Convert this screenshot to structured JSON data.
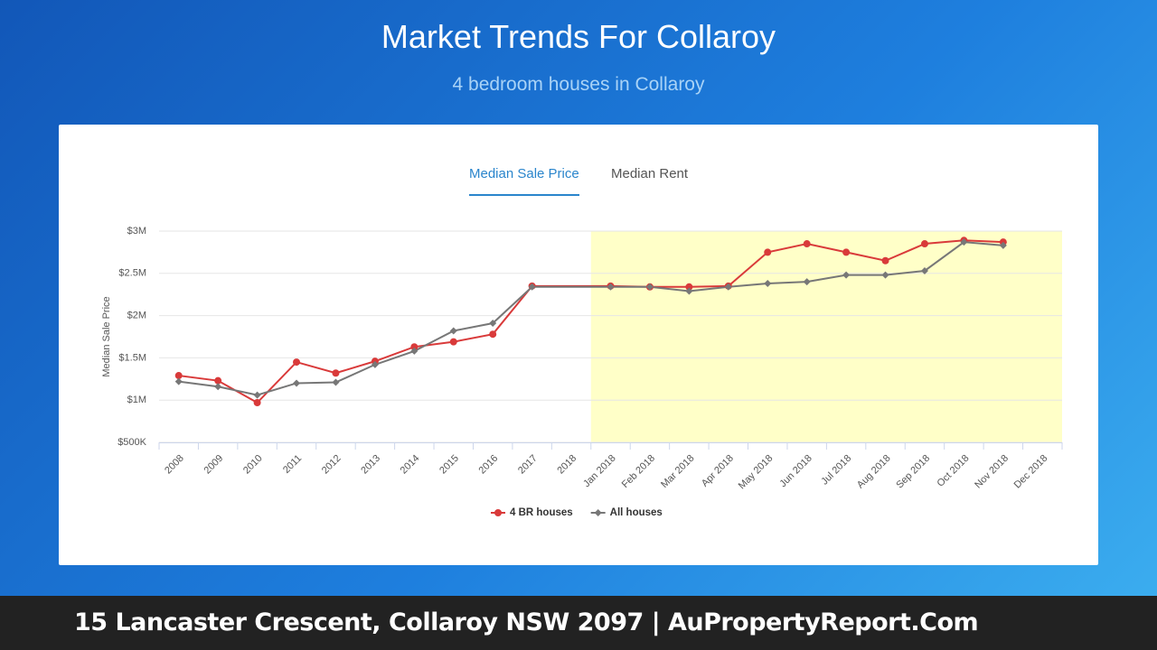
{
  "header": {
    "title": "Market Trends For Collaroy",
    "subtitle": "4 bedroom houses in Collaroy"
  },
  "tabs": [
    {
      "label": "Median Sale Price",
      "active": true
    },
    {
      "label": "Median Rent",
      "active": false
    }
  ],
  "chart_data": {
    "type": "line",
    "y_label": "Median Sale Price",
    "categories": [
      "2008",
      "2009",
      "2010",
      "2011",
      "2012",
      "2013",
      "2014",
      "2015",
      "2016",
      "2017",
      "2018",
      "Jan 2018",
      "Feb 2018",
      "Mar 2018",
      "Apr 2018",
      "May 2018",
      "Jun 2018",
      "Jul 2018",
      "Aug 2018",
      "Sep 2018",
      "Oct 2018",
      "Nov 2018",
      "Dec 2018"
    ],
    "series": [
      {
        "name": "4 BR houses",
        "color": "#d93a3a",
        "marker": "circle",
        "values": [
          1290000,
          1230000,
          970000,
          1450000,
          1320000,
          1460000,
          1630000,
          1690000,
          1780000,
          2350000,
          null,
          2350000,
          2340000,
          2340000,
          2350000,
          2750000,
          2850000,
          2750000,
          2650000,
          2850000,
          2890000,
          2870000,
          null
        ]
      },
      {
        "name": "All houses",
        "color": "#777777",
        "marker": "diamond",
        "values": [
          1220000,
          1160000,
          1060000,
          1200000,
          1210000,
          1420000,
          1580000,
          1820000,
          1910000,
          2340000,
          null,
          2340000,
          2340000,
          2290000,
          2340000,
          2380000,
          2400000,
          2480000,
          2480000,
          2530000,
          2870000,
          2830000,
          null
        ]
      }
    ],
    "connect_nulls": true,
    "plot_band": {
      "from": "Jan 2018",
      "to": "Dec 2018",
      "color": "#ffffc8"
    },
    "ylim": [
      500000,
      3000000
    ],
    "yticks": [
      {
        "value": 500000,
        "label": "$500K"
      },
      {
        "value": 1000000,
        "label": "$1M"
      },
      {
        "value": 1500000,
        "label": "$1.5M"
      },
      {
        "value": 2000000,
        "label": "$2M"
      },
      {
        "value": 2500000,
        "label": "$2.5M"
      },
      {
        "value": 3000000,
        "label": "$3M"
      }
    ],
    "grid": true
  },
  "footer": {
    "text": "15 Lancaster Crescent, Collaroy NSW 2097 | AuPropertyReport.Com"
  }
}
